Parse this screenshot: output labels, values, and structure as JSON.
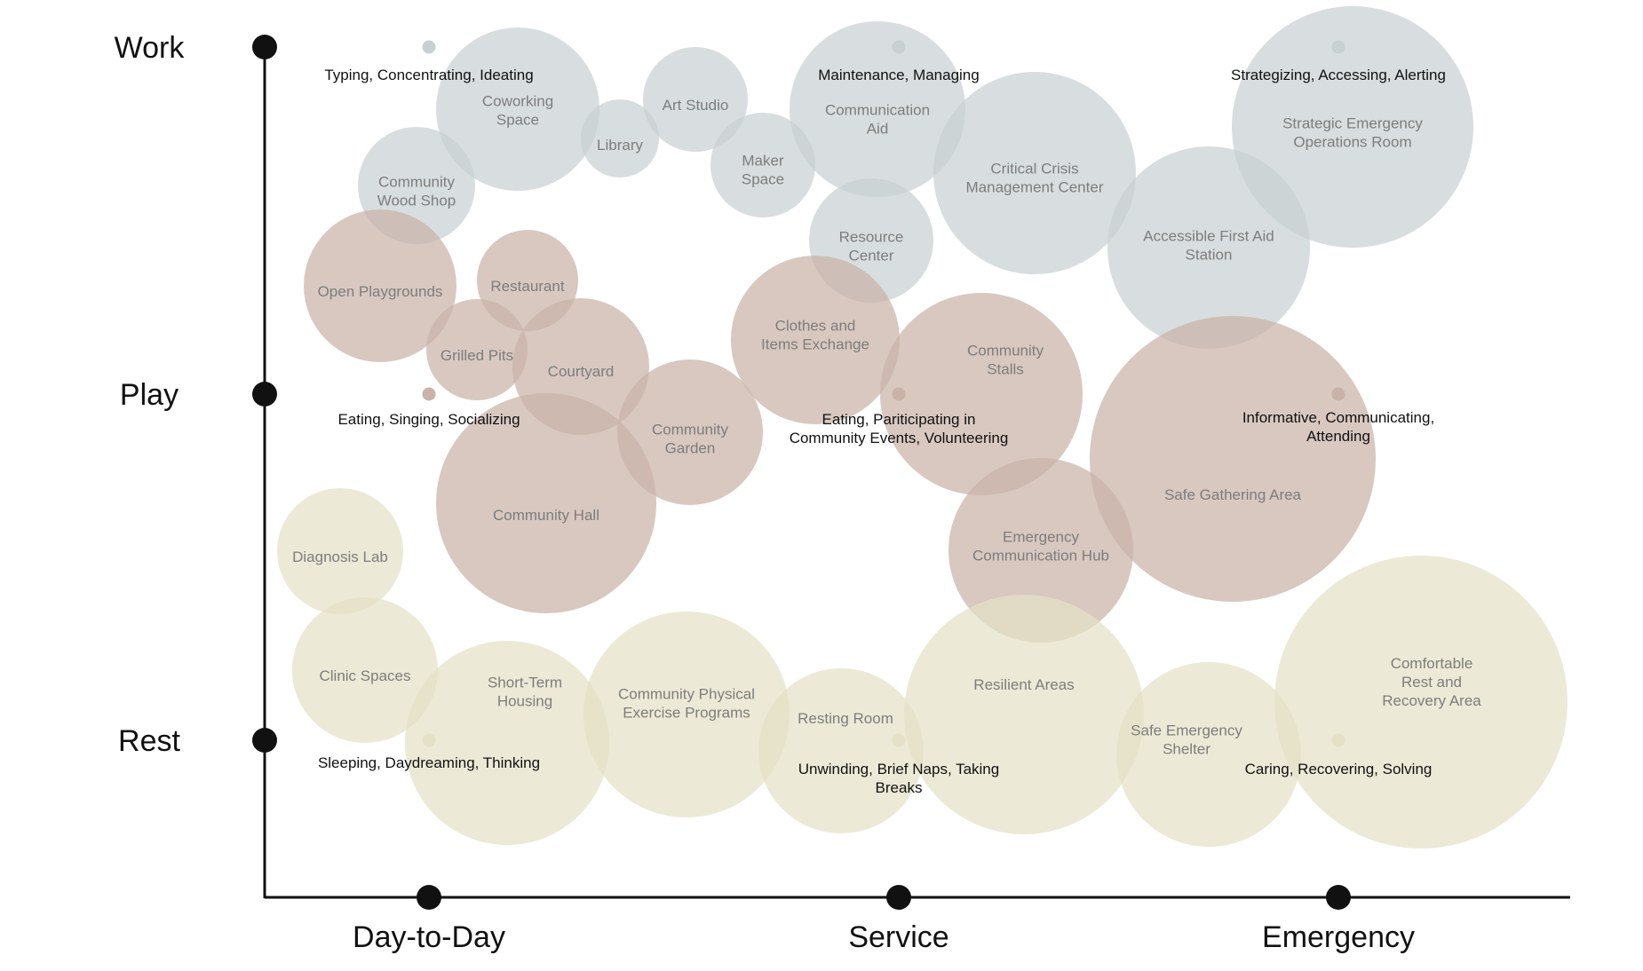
{
  "chart_data": {
    "type": "bubble-matrix",
    "colors": {
      "Work": "#c9d0d2",
      "Play": "#c9b3a8",
      "Rest": "#e4e1c6",
      "axis": "#111111"
    },
    "y_axis": {
      "levels": [
        "Rest",
        "Play",
        "Work"
      ]
    },
    "x_axis": {
      "levels": [
        "Day-to-Day",
        "Service",
        "Emergency"
      ]
    },
    "activities": [
      {
        "level": "Work",
        "scenario": "Day-to-Day",
        "text": "Typing, Concentrating, Ideating"
      },
      {
        "level": "Work",
        "scenario": "Service",
        "text": "Maintenance, Managing"
      },
      {
        "level": "Work",
        "scenario": "Emergency",
        "text": "Strategizing, Accessing, Alerting"
      },
      {
        "level": "Play",
        "scenario": "Day-to-Day",
        "text": "Eating, Singing, Socializing"
      },
      {
        "level": "Play",
        "scenario": "Service",
        "text": "Eating, Pariticipating in\nCommunity Events, Volunteering"
      },
      {
        "level": "Play",
        "scenario": "Emergency",
        "text": "Informative, Communicating,\nAttending"
      },
      {
        "level": "Rest",
        "scenario": "Day-to-Day",
        "text": "Sleeping, Daydreaming, Thinking"
      },
      {
        "level": "Rest",
        "scenario": "Service",
        "text": "Unwinding, Brief Naps, Taking\nBreaks"
      },
      {
        "level": "Rest",
        "scenario": "Emergency",
        "text": "Caring, Recovering, Solving"
      }
    ],
    "spaces": [
      {
        "name": "Coworking\nSpace",
        "category": "Work"
      },
      {
        "name": "Community\nWood Shop",
        "category": "Work"
      },
      {
        "name": "Library",
        "category": "Work"
      },
      {
        "name": "Art Studio",
        "category": "Work"
      },
      {
        "name": "Maker\nSpace",
        "category": "Work"
      },
      {
        "name": "Communication\nAid",
        "category": "Work"
      },
      {
        "name": "Resource\nCenter",
        "category": "Work"
      },
      {
        "name": "Critical Crisis\nManagement Center",
        "category": "Work"
      },
      {
        "name": "Strategic Emergency\nOperations Room",
        "category": "Work"
      },
      {
        "name": "Accessible First Aid\nStation",
        "category": "Work"
      },
      {
        "name": "Open Playgrounds",
        "category": "Play"
      },
      {
        "name": "Restaurant",
        "category": "Play"
      },
      {
        "name": "Grilled Pits",
        "category": "Play"
      },
      {
        "name": "Courtyard",
        "category": "Play"
      },
      {
        "name": "Community Hall",
        "category": "Play"
      },
      {
        "name": "Community\nGarden",
        "category": "Play"
      },
      {
        "name": "Clothes and\nItems Exchange",
        "category": "Play"
      },
      {
        "name": "Community\nStalls",
        "category": "Play"
      },
      {
        "name": "Emergency\nCommunication Hub",
        "category": "Play"
      },
      {
        "name": "Safe Gathering Area",
        "category": "Play"
      },
      {
        "name": "Diagnosis Lab",
        "category": "Rest"
      },
      {
        "name": "Clinic Spaces",
        "category": "Rest"
      },
      {
        "name": "Short-Term\nHousing",
        "category": "Rest"
      },
      {
        "name": "Community Physical\nExercise Programs",
        "category": "Rest"
      },
      {
        "name": "Resting Room",
        "category": "Rest"
      },
      {
        "name": "Resilient Areas",
        "category": "Rest"
      },
      {
        "name": "Safe Emergency\nShelter",
        "category": "Rest"
      },
      {
        "name": "Comfortable\nRest and\nRecovery Area",
        "category": "Rest"
      }
    ]
  }
}
